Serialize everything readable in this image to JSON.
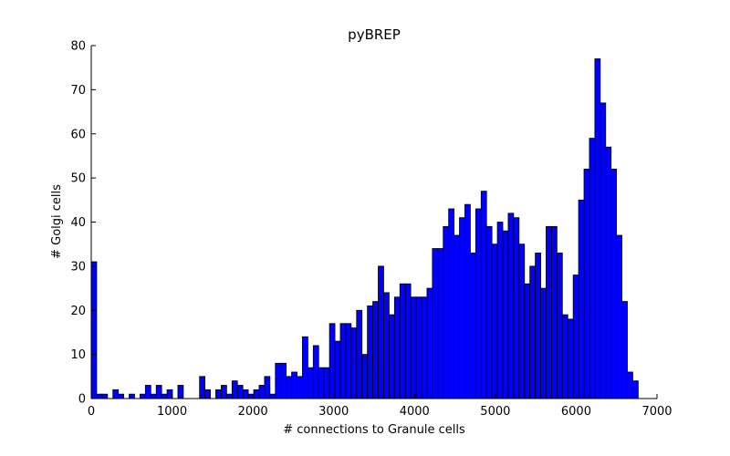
{
  "chart_data": {
    "type": "bar",
    "subtype": "histogram",
    "title": "pyBREP",
    "xlabel": "# connections to Granule cells",
    "ylabel": "# Golgi cells",
    "xlim": [
      0,
      7000
    ],
    "ylim": [
      0,
      80
    ],
    "xticks": [
      "0",
      "1000",
      "2000",
      "3000",
      "4000",
      "5000",
      "6000",
      "7000"
    ],
    "yticks": [
      "0",
      "10",
      "20",
      "30",
      "40",
      "50",
      "60",
      "70",
      "80"
    ],
    "grid": false,
    "bar_color": "#0000ff",
    "edge_color": "#000000",
    "bin_width": 67,
    "bin_start": 0,
    "values": [
      31,
      1,
      1,
      0,
      2,
      1,
      0,
      1,
      0,
      1,
      3,
      1,
      3,
      1,
      2,
      0,
      3,
      0,
      0,
      0,
      5,
      2,
      0,
      2,
      3,
      1,
      4,
      3,
      2,
      1,
      2,
      3,
      5,
      1,
      8,
      8,
      5,
      6,
      5,
      14,
      7,
      12,
      7,
      7,
      17,
      13,
      17,
      17,
      16,
      20,
      10,
      21,
      22,
      30,
      24,
      19,
      23,
      26,
      26,
      23,
      23,
      23,
      25,
      34,
      34,
      39,
      43,
      37,
      41,
      44,
      33,
      43,
      47,
      39,
      35,
      40,
      38,
      42,
      41,
      35,
      26,
      30,
      33,
      25,
      39,
      39,
      33,
      19,
      18,
      28,
      45,
      52,
      59,
      77,
      67,
      57,
      52,
      37,
      22,
      6,
      4
    ]
  }
}
